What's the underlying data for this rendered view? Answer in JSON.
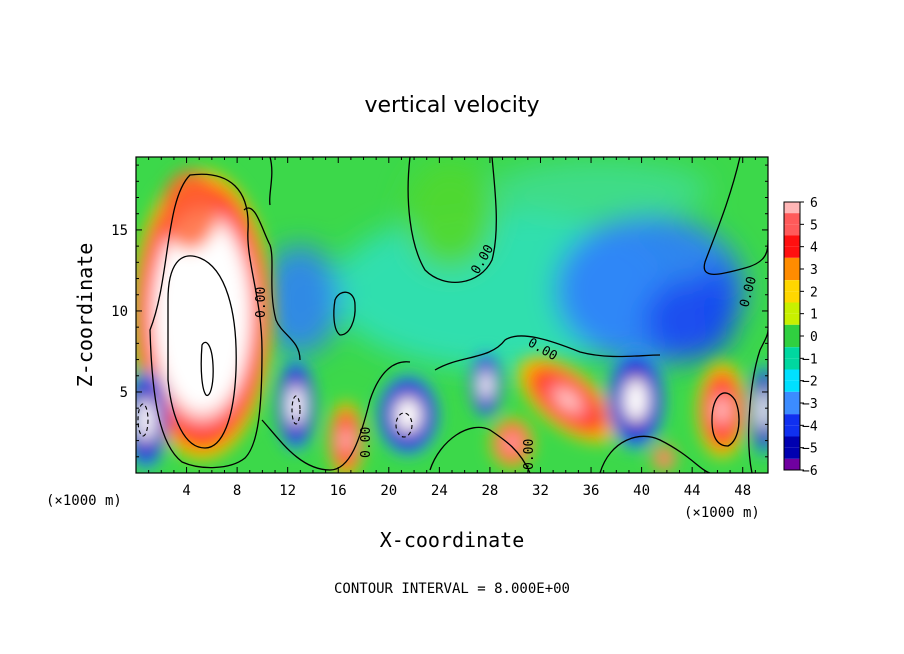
{
  "chart_data": {
    "type": "heatmap",
    "title": "vertical velocity",
    "xlabel": "X-coordinate",
    "ylabel": "Z-coordinate",
    "x_unit_label": "(×1000 m)",
    "z_unit_label": "(×1000 m)",
    "xlim": [
      0,
      50
    ],
    "ylim": [
      0,
      19.5
    ],
    "x_ticks": [
      4,
      8,
      12,
      16,
      20,
      24,
      28,
      32,
      36,
      40,
      44,
      48
    ],
    "y_ticks": [
      5,
      10,
      15
    ],
    "colorbar": {
      "range": [
        -6,
        6
      ],
      "labels": [
        "6",
        "5",
        "4",
        "3",
        "2",
        "1",
        "0",
        "−1",
        "−2",
        "−3",
        "−4",
        "−5",
        "−6"
      ],
      "colors": [
        "#ffb6b6",
        "#ff5a5a",
        "#ff1010",
        "#ff8c00",
        "#ffd700",
        "#c8f000",
        "#30d040",
        "#00d8a0",
        "#00e0ff",
        "#3c8cff",
        "#1030f0",
        "#0000b0",
        "#7000a0"
      ]
    },
    "contour_label": "0.00",
    "footer": "CONTOUR INTERVAL = 8.000E+00",
    "features": [
      {
        "x": 6.0,
        "z": 9.0,
        "w": 12.0,
        "sign": "up"
      },
      {
        "x": 0.8,
        "z": 3.5,
        "w": -9.0,
        "sign": "down"
      },
      {
        "x": 12.5,
        "z": 4.0,
        "w": -7.0,
        "sign": "down"
      },
      {
        "x": 17.0,
        "z": 2.0,
        "w": 5.0,
        "sign": "up"
      },
      {
        "x": 21.5,
        "z": 3.5,
        "w": -8.0,
        "sign": "down"
      },
      {
        "x": 27.5,
        "z": 5.5,
        "w": -6.0,
        "sign": "down"
      },
      {
        "x": 30.5,
        "z": 1.8,
        "w": 5.0,
        "sign": "up"
      },
      {
        "x": 35.0,
        "z": 4.5,
        "w": 5.0,
        "sign": "up"
      },
      {
        "x": 38.5,
        "z": 5.5,
        "w": -6.0,
        "sign": "down"
      },
      {
        "x": 46.0,
        "z": 4.0,
        "w": 8.0,
        "sign": "up"
      },
      {
        "x": 49.5,
        "z": 4.0,
        "w": -7.0,
        "sign": "down"
      },
      {
        "x": 23.0,
        "z": 16.5,
        "w": 0.8,
        "sign": "up"
      },
      {
        "x": 39.0,
        "z": 11.0,
        "w": -3.5,
        "sign": "down"
      }
    ]
  }
}
